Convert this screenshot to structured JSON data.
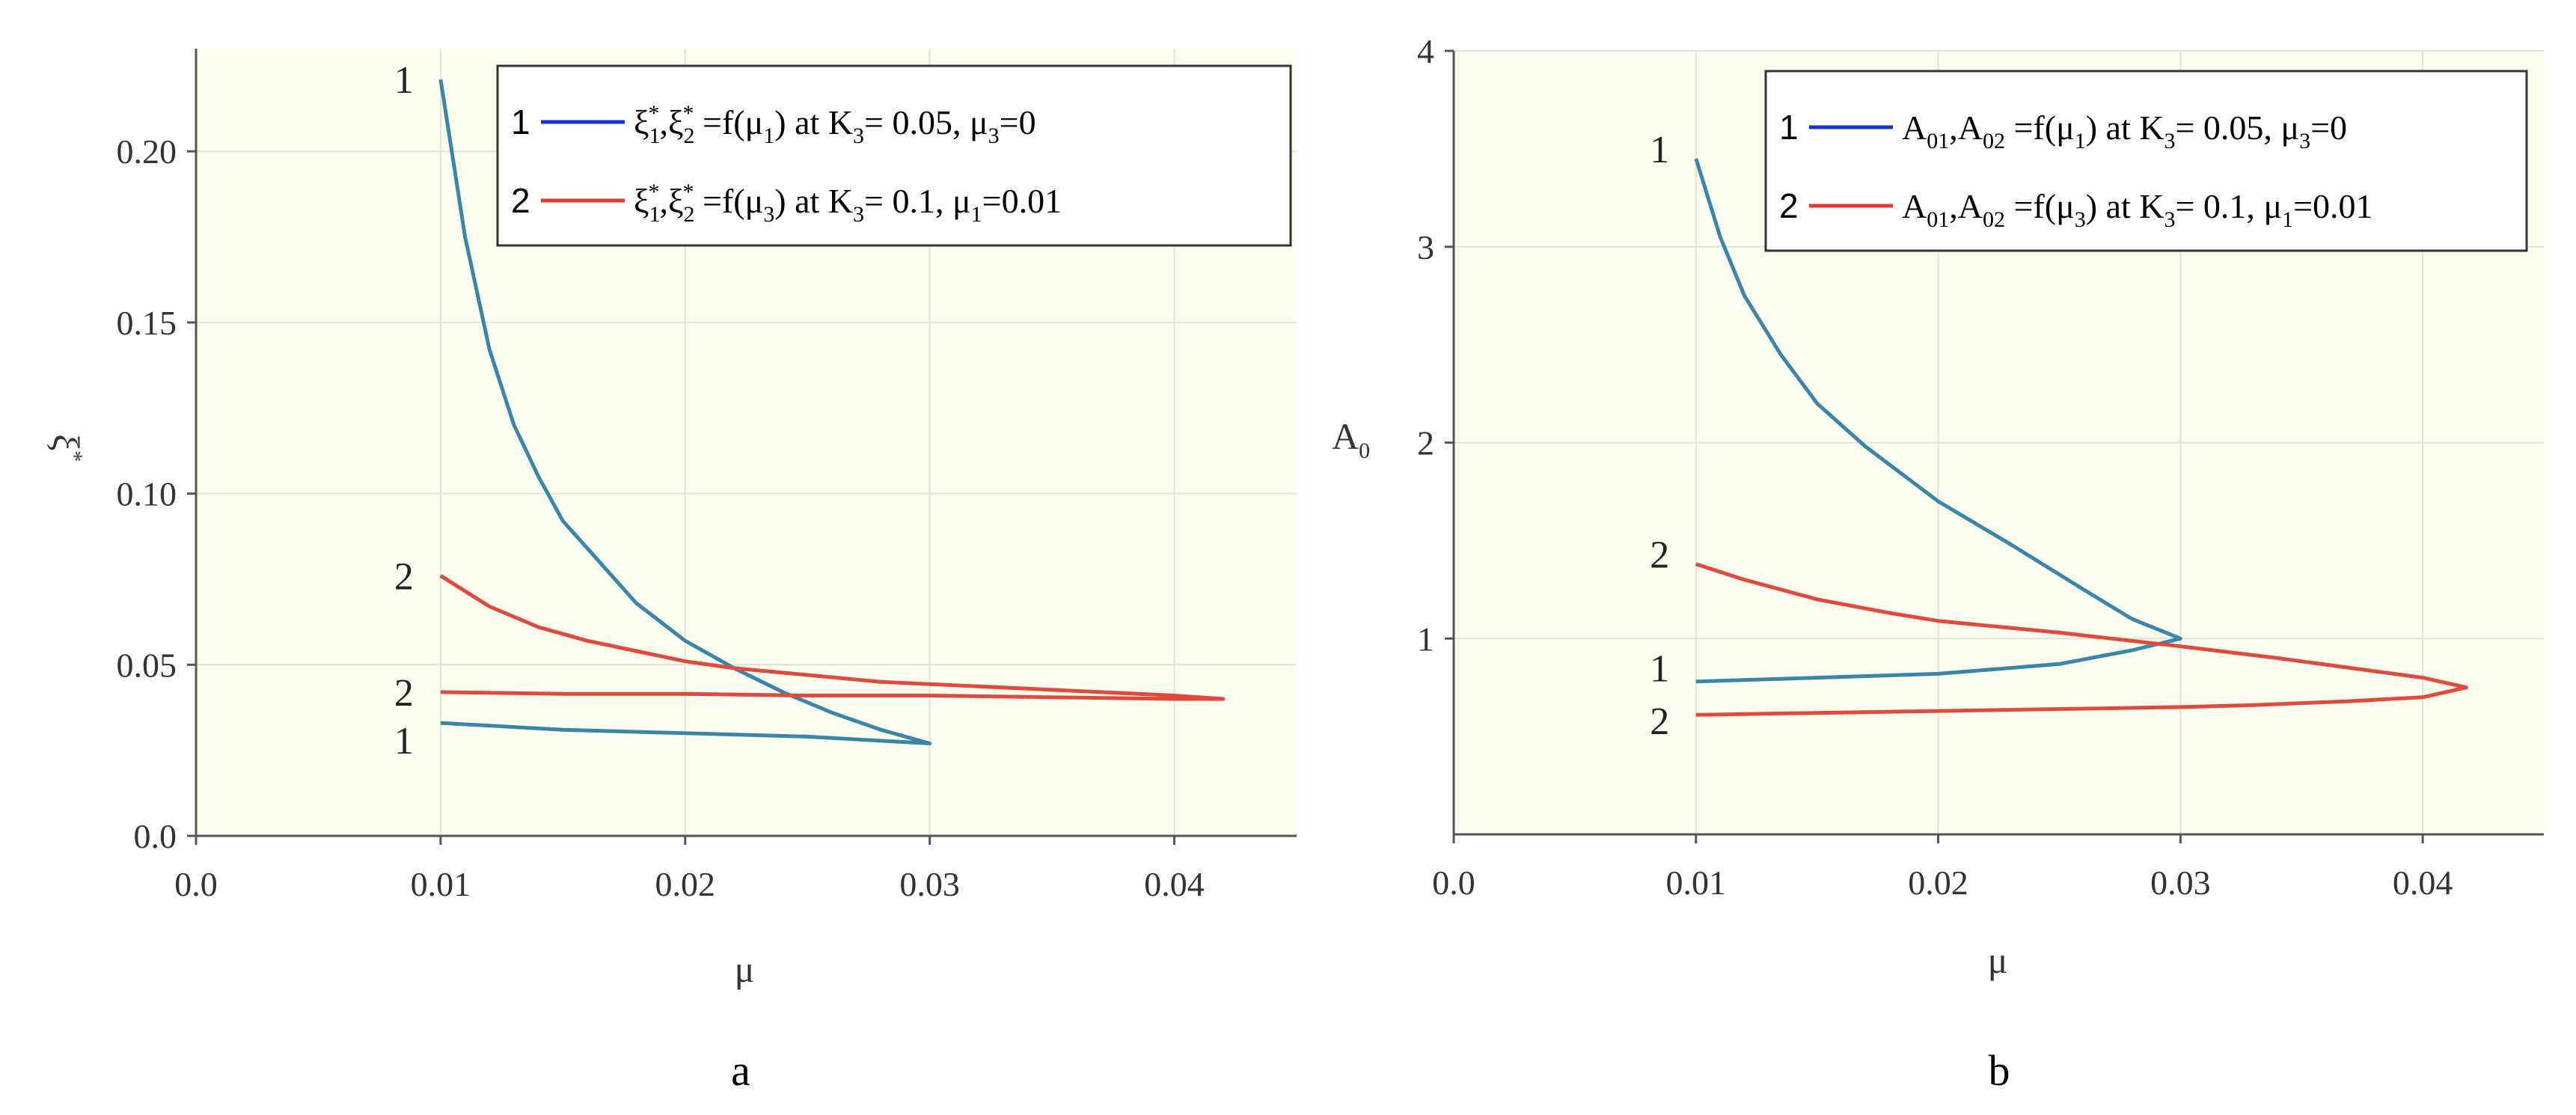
{
  "chart_data": [
    {
      "type": "line",
      "panel_caption": "a",
      "xlabel": "μ",
      "ylabel": "ξ*",
      "xlim": [
        0,
        0.045
      ],
      "ylim": [
        0,
        0.23
      ],
      "x_ticks": [
        0,
        0.01,
        0.02,
        0.03,
        0.04
      ],
      "x_tick_labels": [
        "0.0",
        "0.01",
        "0.02",
        "0.03",
        "0.04"
      ],
      "y_ticks": [
        0,
        0.05,
        0.1,
        0.15,
        0.2
      ],
      "y_tick_labels": [
        "0.0",
        "0.05",
        "0.10",
        "0.15",
        "0.20"
      ],
      "grid": true,
      "legend_position": "top-right",
      "legend": [
        {
          "id": "1",
          "line_color": "#1f2fd6",
          "text": "ξ*1,ξ*2 =f(μ1) at K3= 0.05, μ3=0"
        },
        {
          "id": "2",
          "line_color": "#e33b2d",
          "text": "ξ*1,ξ*2 =f(μ3) at K3= 0.1, μ1=0.01"
        }
      ],
      "series": [
        {
          "name": "1",
          "color": "#3a86ab",
          "labels": [
            {
              "text": "1",
              "x": 0.0085,
              "y": 0.221
            },
            {
              "text": "1",
              "x": 0.0085,
              "y": 0.028
            }
          ],
          "points": [
            [
              0.01,
              0.221
            ],
            [
              0.011,
              0.175
            ],
            [
              0.012,
              0.142
            ],
            [
              0.013,
              0.12
            ],
            [
              0.014,
              0.105
            ],
            [
              0.015,
              0.092
            ],
            [
              0.0165,
              0.08
            ],
            [
              0.018,
              0.068
            ],
            [
              0.02,
              0.057
            ],
            [
              0.022,
              0.049
            ],
            [
              0.024,
              0.042
            ],
            [
              0.026,
              0.036
            ],
            [
              0.028,
              0.031
            ],
            [
              0.03,
              0.027
            ],
            [
              0.025,
              0.029
            ],
            [
              0.02,
              0.03
            ],
            [
              0.015,
              0.031
            ],
            [
              0.01,
              0.033
            ]
          ]
        },
        {
          "name": "2",
          "color": "#e04a3c",
          "labels": [
            {
              "text": "2",
              "x": 0.0085,
              "y": 0.076
            },
            {
              "text": "2",
              "x": 0.0085,
              "y": 0.042
            }
          ],
          "points": [
            [
              0.01,
              0.076
            ],
            [
              0.012,
              0.067
            ],
            [
              0.014,
              0.061
            ],
            [
              0.016,
              0.057
            ],
            [
              0.018,
              0.054
            ],
            [
              0.02,
              0.051
            ],
            [
              0.022,
              0.049
            ],
            [
              0.025,
              0.047
            ],
            [
              0.028,
              0.045
            ],
            [
              0.031,
              0.044
            ],
            [
              0.034,
              0.043
            ],
            [
              0.037,
              0.042
            ],
            [
              0.04,
              0.041
            ],
            [
              0.042,
              0.04
            ],
            [
              0.04,
              0.04
            ],
            [
              0.035,
              0.0405
            ],
            [
              0.03,
              0.041
            ],
            [
              0.025,
              0.041
            ],
            [
              0.02,
              0.0415
            ],
            [
              0.015,
              0.0415
            ],
            [
              0.01,
              0.042
            ]
          ]
        }
      ]
    },
    {
      "type": "line",
      "panel_caption": "b",
      "xlabel": "μ",
      "ylabel": "A0",
      "xlim": [
        0,
        0.045
      ],
      "ylim": [
        0,
        4
      ],
      "x_ticks": [
        0,
        0.01,
        0.02,
        0.03,
        0.04
      ],
      "x_tick_labels": [
        "0.0",
        "0.01",
        "0.02",
        "0.03",
        "0.04"
      ],
      "y_ticks": [
        1,
        2,
        3,
        4
      ],
      "y_tick_labels": [
        "1",
        "2",
        "3",
        "4"
      ],
      "grid": true,
      "legend_position": "top-right",
      "legend": [
        {
          "id": "1",
          "line_color": "#1f2fd6",
          "text": "A01,A02 =f(μ1) at K3= 0.05, μ3=0"
        },
        {
          "id": "2",
          "line_color": "#e33b2d",
          "text": "A01,A02 =f(μ3) at K3= 0.1, μ1=0.01"
        }
      ],
      "series": [
        {
          "name": "1",
          "color": "#3a86ab",
          "labels": [
            {
              "text": "1",
              "x": 0.0085,
              "y": 3.5
            },
            {
              "text": "1",
              "x": 0.0085,
              "y": 0.85
            }
          ],
          "points": [
            [
              0.01,
              3.45
            ],
            [
              0.011,
              3.05
            ],
            [
              0.012,
              2.75
            ],
            [
              0.0135,
              2.45
            ],
            [
              0.015,
              2.2
            ],
            [
              0.017,
              1.98
            ],
            [
              0.02,
              1.7
            ],
            [
              0.023,
              1.48
            ],
            [
              0.026,
              1.25
            ],
            [
              0.028,
              1.1
            ],
            [
              0.03,
              1.0
            ],
            [
              0.028,
              0.94
            ],
            [
              0.025,
              0.87
            ],
            [
              0.02,
              0.82
            ],
            [
              0.015,
              0.8
            ],
            [
              0.01,
              0.78
            ]
          ]
        },
        {
          "name": "2",
          "color": "#e04a3c",
          "labels": [
            {
              "text": "2",
              "x": 0.0085,
              "y": 1.43
            },
            {
              "text": "2",
              "x": 0.0085,
              "y": 0.58
            }
          ],
          "points": [
            [
              0.01,
              1.38
            ],
            [
              0.012,
              1.3
            ],
            [
              0.015,
              1.2
            ],
            [
              0.018,
              1.13
            ],
            [
              0.02,
              1.09
            ],
            [
              0.025,
              1.03
            ],
            [
              0.03,
              0.96
            ],
            [
              0.034,
              0.9
            ],
            [
              0.037,
              0.85
            ],
            [
              0.04,
              0.8
            ],
            [
              0.0418,
              0.75
            ],
            [
              0.04,
              0.7
            ],
            [
              0.037,
              0.68
            ],
            [
              0.033,
              0.66
            ],
            [
              0.03,
              0.65
            ],
            [
              0.025,
              0.64
            ],
            [
              0.02,
              0.63
            ],
            [
              0.015,
              0.62
            ],
            [
              0.01,
              0.61
            ]
          ]
        }
      ]
    }
  ]
}
